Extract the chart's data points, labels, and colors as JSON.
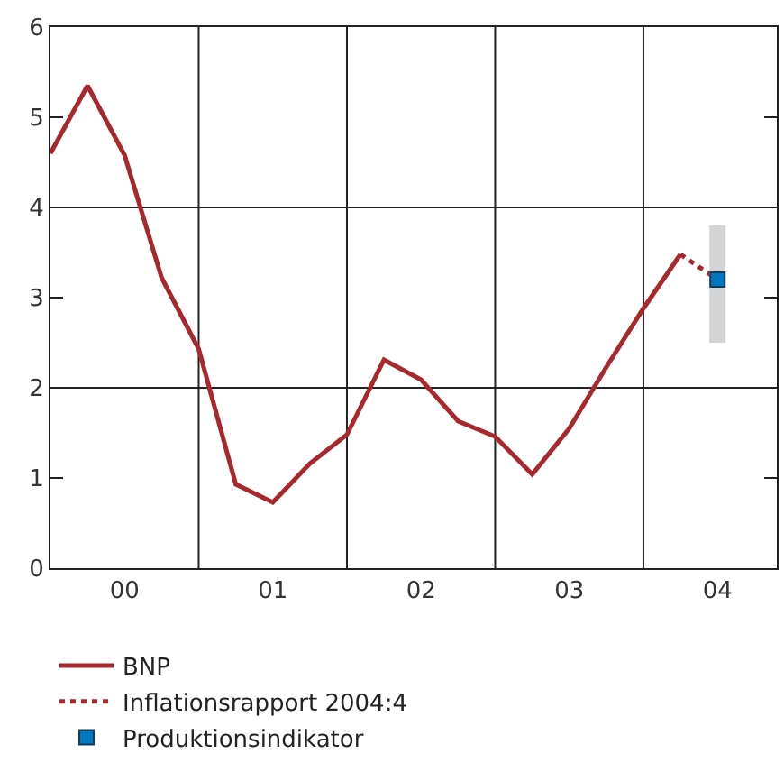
{
  "chart_data": {
    "type": "line",
    "categories": [
      null,
      null,
      "00",
      null,
      null,
      null,
      "01",
      null,
      null,
      null,
      "02",
      null,
      null,
      null,
      "03",
      null,
      null,
      null,
      "04"
    ],
    "series": [
      {
        "name": "BNP",
        "color": "#a8282e",
        "line_style": "solid",
        "marker": "none",
        "values": [
          4.6,
          5.35,
          4.58,
          3.22,
          2.43,
          0.93,
          0.73,
          1.16,
          1.48,
          2.31,
          2.09,
          1.63,
          1.46,
          1.04,
          1.55,
          2.23,
          2.88,
          3.48,
          null
        ]
      },
      {
        "name": "Inflationsrapport 2004:4",
        "color": "#a8282e",
        "line_style": "dotted",
        "marker": "none",
        "values": [
          null,
          null,
          null,
          null,
          null,
          null,
          null,
          null,
          null,
          null,
          null,
          null,
          null,
          null,
          null,
          null,
          null,
          3.48,
          3.2
        ]
      },
      {
        "name": "Produktionsindikator",
        "color": "#0078c1",
        "type": "scatter",
        "marker": "square",
        "values": [
          null,
          null,
          null,
          null,
          null,
          null,
          null,
          null,
          null,
          null,
          null,
          null,
          null,
          null,
          null,
          null,
          null,
          null,
          3.2
        ],
        "errors": [
          null,
          null,
          null,
          null,
          null,
          null,
          null,
          null,
          null,
          null,
          null,
          null,
          null,
          null,
          null,
          null,
          null,
          null,
          [
            2.5,
            3.8
          ]
        ]
      }
    ],
    "ylim": [
      0,
      6
    ],
    "yticks": [
      0,
      1,
      2,
      3,
      4,
      5,
      6
    ],
    "ref_lines": [
      {
        "axis": "y",
        "value": 2
      },
      {
        "axis": "y",
        "value": 4
      }
    ],
    "grid": "x",
    "legend": "bottom"
  }
}
